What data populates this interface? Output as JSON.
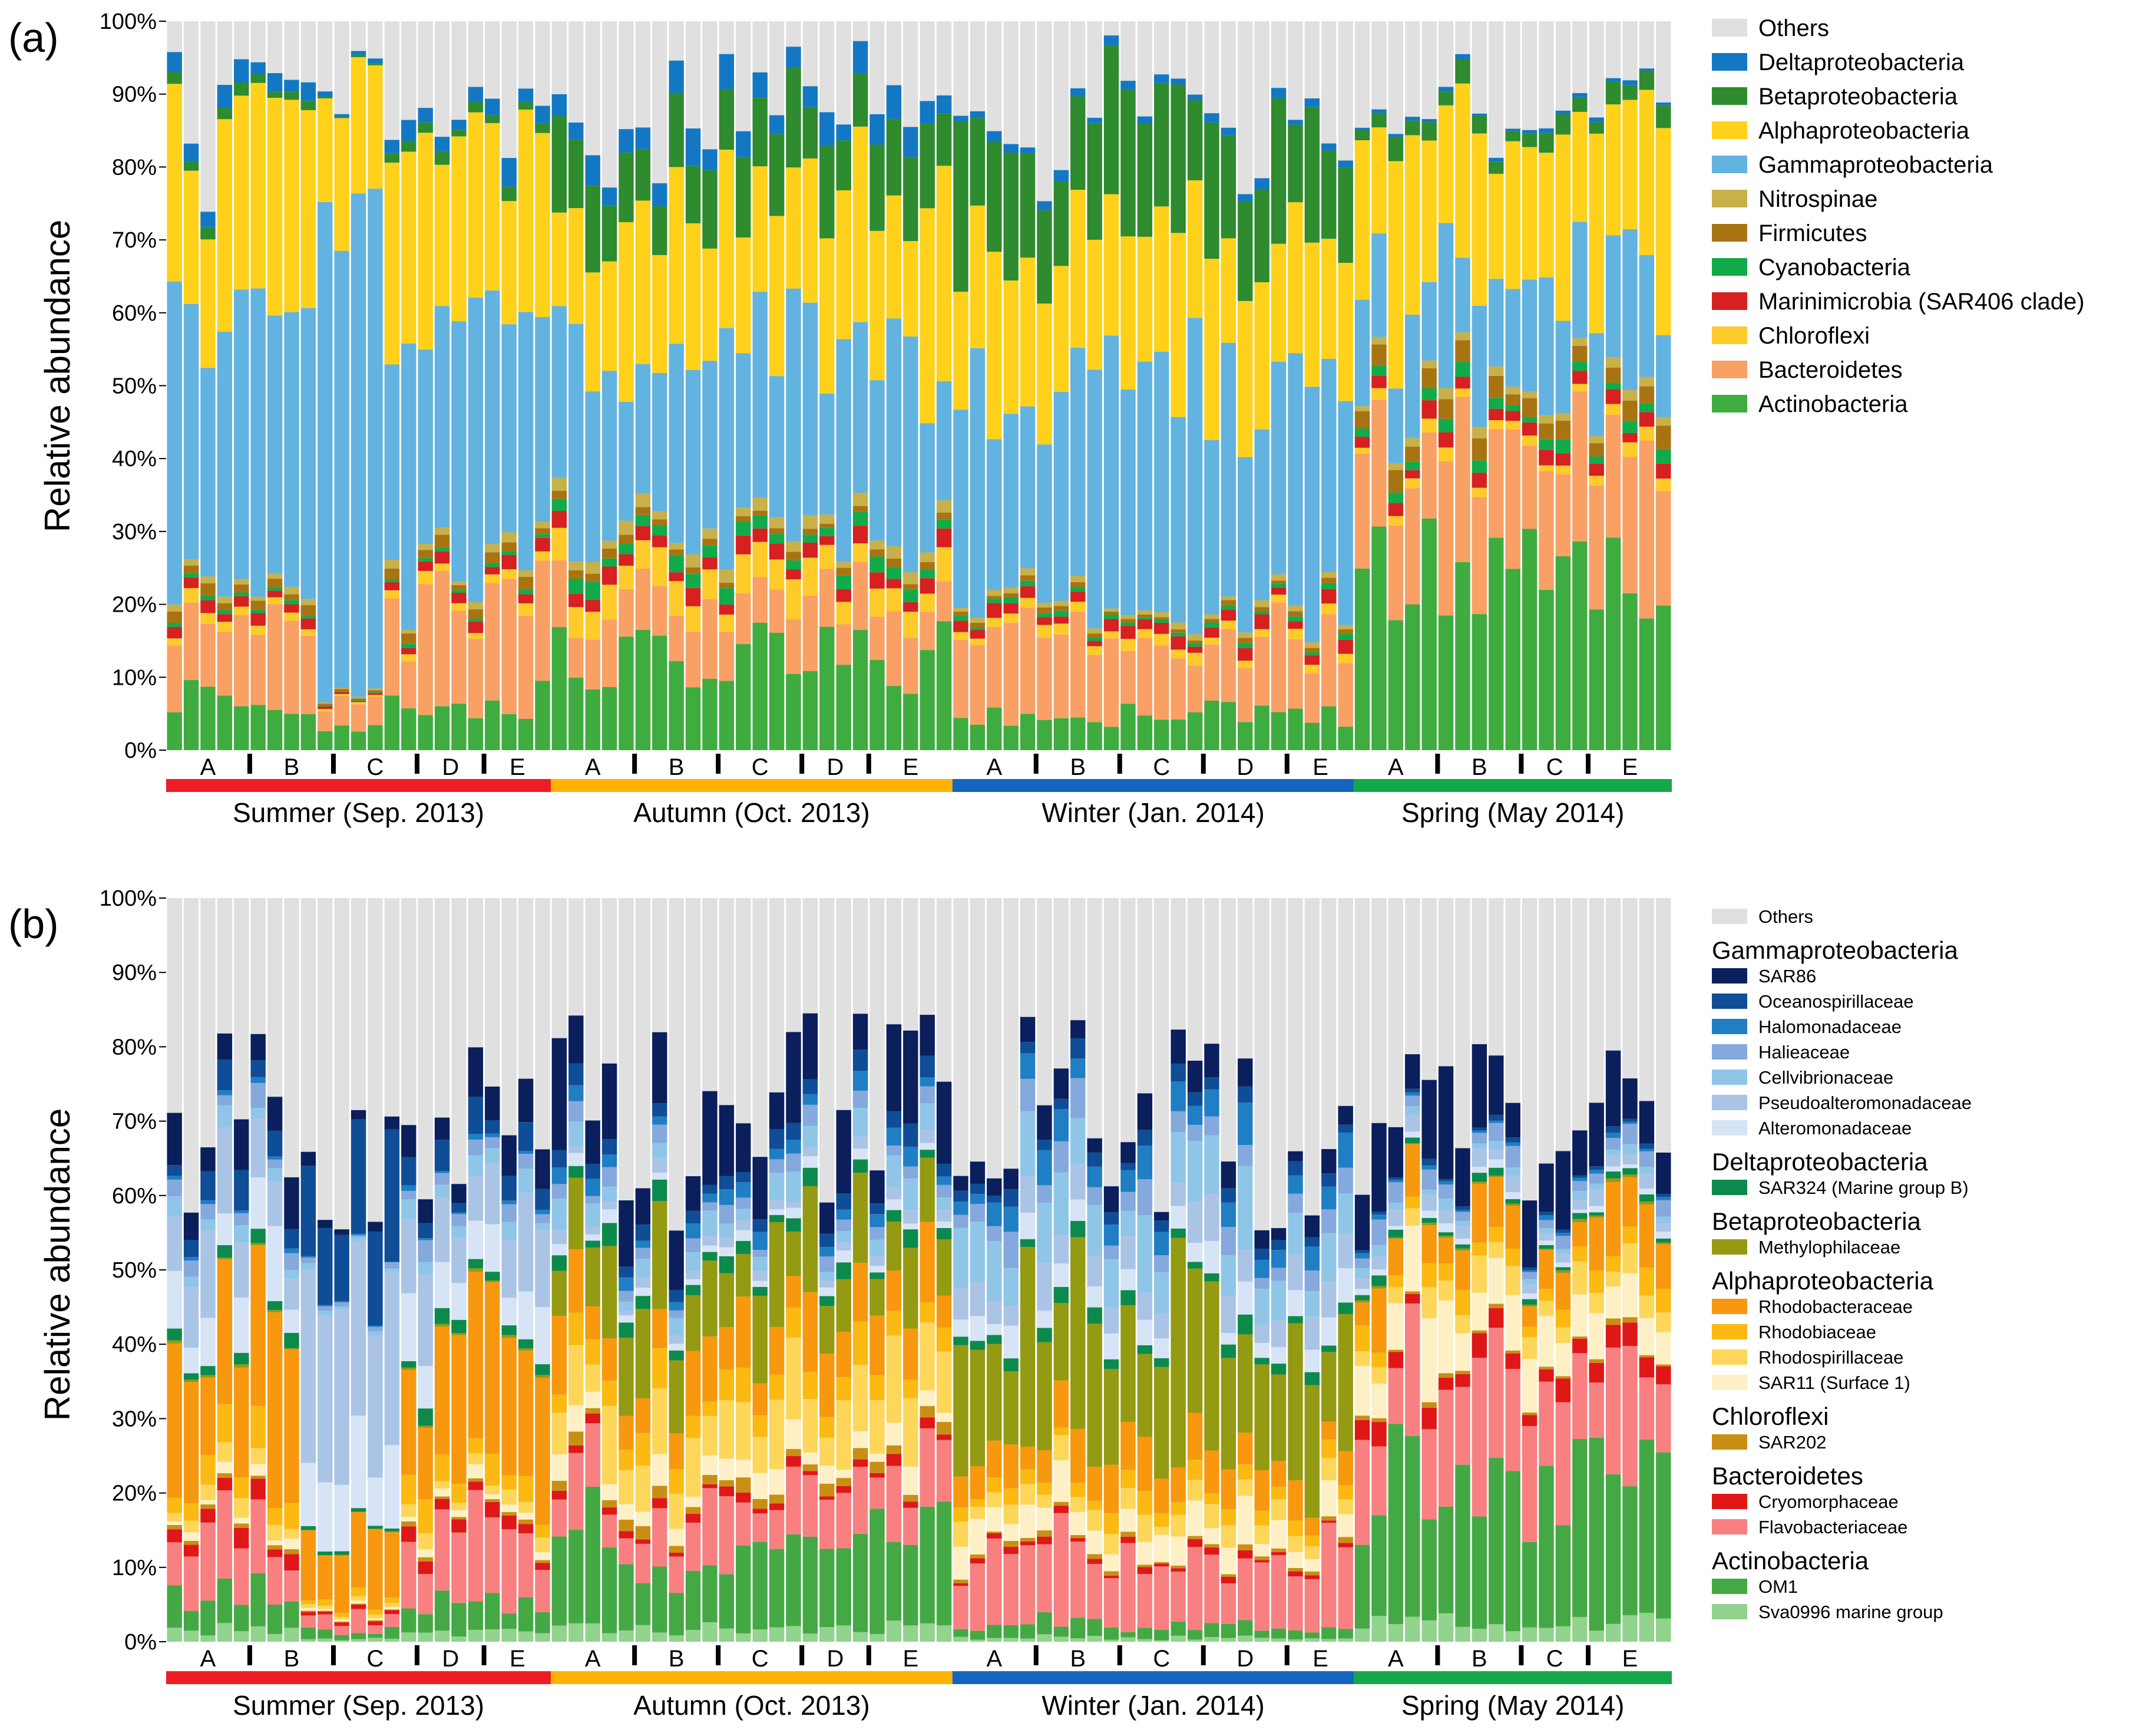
{
  "chart_data": [
    {
      "panel_label": "(a)",
      "type": "stacked-bar",
      "ylabel": "Relative abundance",
      "yticks": [
        "0%",
        "10%",
        "20%",
        "30%",
        "40%",
        "50%",
        "60%",
        "70%",
        "80%",
        "90%",
        "100%"
      ],
      "ylim": [
        0,
        100
      ],
      "n_samples": 90,
      "seasons": [
        {
          "label": "Summer (Sep. 2013)",
          "color": "#ee1c25",
          "start": 0,
          "count": 23,
          "sites": [
            {
              "label": "A",
              "count": 5
            },
            {
              "label": "B",
              "count": 5
            },
            {
              "label": "C",
              "count": 5
            },
            {
              "label": "D",
              "count": 4
            },
            {
              "label": "E",
              "count": 4
            }
          ]
        },
        {
          "label": "Autumn (Oct. 2013)",
          "color": "#ffb300",
          "start": 23,
          "count": 24,
          "sites": [
            {
              "label": "A",
              "count": 5
            },
            {
              "label": "B",
              "count": 5
            },
            {
              "label": "C",
              "count": 5
            },
            {
              "label": "D",
              "count": 4
            },
            {
              "label": "E",
              "count": 5
            }
          ]
        },
        {
          "label": "Winter (Jan. 2014)",
          "color": "#1565c0",
          "start": 47,
          "count": 24,
          "sites": [
            {
              "label": "A",
              "count": 5
            },
            {
              "label": "B",
              "count": 5
            },
            {
              "label": "C",
              "count": 5
            },
            {
              "label": "D",
              "count": 5
            },
            {
              "label": "E",
              "count": 4
            }
          ]
        },
        {
          "label": "Spring (May 2014)",
          "color": "#14a84b",
          "start": 71,
          "count": 19,
          "sites": [
            {
              "label": "A",
              "count": 5
            },
            {
              "label": "B",
              "count": 5
            },
            {
              "label": "C",
              "count": 4
            },
            {
              "label": "E",
              "count": 5
            }
          ]
        }
      ],
      "legend": [
        {
          "name": "Others",
          "color": "#e0e0e0"
        },
        {
          "name": "Deltaproteobacteria",
          "color": "#1378c4"
        },
        {
          "name": "Betaproteobacteria",
          "color": "#2e8b2e"
        },
        {
          "name": "Alphaproteobacteria",
          "color": "#ffd11a"
        },
        {
          "name": "Gammaproteobacteria",
          "color": "#62b3e0"
        },
        {
          "name": "Nitrospinae",
          "color": "#c8b04a"
        },
        {
          "name": "Firmicutes",
          "color": "#a87412"
        },
        {
          "name": "Cyanobacteria",
          "color": "#11ab4a"
        },
        {
          "name": "Marinimicrobia (SAR406 clade)",
          "color": "#d72020"
        },
        {
          "name": "Chloroflexi",
          "color": "#fecb2a"
        },
        {
          "name": "Bacteroidetes",
          "color": "#f9a065"
        },
        {
          "name": "Actinobacteria",
          "color": "#3fac3f"
        }
      ],
      "series_stack_order": [
        "Actinobacteria",
        "Bacteroidetes",
        "Chloroflexi",
        "Marinimicrobia (SAR406 clade)",
        "Cyanobacteria",
        "Firmicutes",
        "Nitrospinae",
        "Gammaproteobacteria",
        "Alphaproteobacteria",
        "Betaproteobacteria",
        "Deltaproteobacteria"
      ],
      "season_profiles": [
        {
          "Actinobacteria": 7,
          "Bacteroidetes": 15,
          "Chloroflexi": 1.5,
          "Marinimicrobia (SAR406 clade)": 1.5,
          "Cyanobacteria": 0.5,
          "Firmicutes": 1.5,
          "Nitrospinae": 1,
          "Gammaproteobacteria": 36,
          "Alphaproteobacteria": 28,
          "Betaproteobacteria": 1.5,
          "Deltaproteobacteria": 2.5
        },
        {
          "Actinobacteria": 13,
          "Bacteroidetes": 8,
          "Chloroflexi": 4,
          "Marinimicrobia (SAR406 clade)": 2,
          "Cyanobacteria": 1.5,
          "Firmicutes": 1,
          "Nitrospinae": 1.5,
          "Gammaproteobacteria": 26,
          "Alphaproteobacteria": 23,
          "Betaproteobacteria": 9,
          "Deltaproteobacteria": 4
        }
      ]
    },
    {
      "panel_label": "(b)",
      "type": "stacked-bar",
      "ylabel": "Relative abundance",
      "yticks": [
        "0%",
        "10%",
        "20%",
        "30%",
        "40%",
        "50%",
        "60%",
        "70%",
        "80%",
        "90%",
        "100%"
      ],
      "ylim": [
        0,
        100
      ],
      "n_samples": 90,
      "seasons": [
        {
          "label": "Summer (Sep. 2013)",
          "color": "#ee1c25"
        },
        {
          "label": "Autumn (Oct. 2013)",
          "color": "#ffb300"
        },
        {
          "label": "Winter (Jan. 2014)",
          "color": "#1565c0"
        },
        {
          "label": "Spring (May 2014)",
          "color": "#14a84b"
        }
      ],
      "legend_groups": [
        {
          "group": "",
          "items": [
            {
              "name": "Others",
              "color": "#e0e0e0"
            }
          ]
        },
        {
          "group": "Gammaproteobacteria",
          "items": [
            {
              "name": "SAR86",
              "color": "#0a1f5c"
            },
            {
              "name": "Oceanospirillaceae",
              "color": "#0f4d96"
            },
            {
              "name": "Halomonadaceae",
              "color": "#1f7ec4"
            },
            {
              "name": "Halieaceae",
              "color": "#85a9dc"
            },
            {
              "name": "Cellvibrionaceae",
              "color": "#8fc6e8"
            },
            {
              "name": "Pseudoalteromonadaceae",
              "color": "#aac4e6"
            },
            {
              "name": "Alteromonadaceae",
              "color": "#d6e4f5"
            }
          ]
        },
        {
          "group": "Deltaproteobacteria",
          "items": [
            {
              "name": "SAR324 (Marine group B)",
              "color": "#0c8a4c"
            }
          ]
        },
        {
          "group": "Betaproteobacteria",
          "items": [
            {
              "name": "Methylophilaceae",
              "color": "#949a12"
            }
          ]
        },
        {
          "group": "Alphaproteobacteria",
          "items": [
            {
              "name": "Rhodobacteraceae",
              "color": "#f7980f"
            },
            {
              "name": "Rhodobiaceae",
              "color": "#fbb912"
            },
            {
              "name": "Rhodospirillaceae",
              "color": "#fdd65a"
            },
            {
              "name": "SAR11 (Surface 1)",
              "color": "#fef0c4"
            }
          ]
        },
        {
          "group": "Chloroflexi",
          "items": [
            {
              "name": "SAR202",
              "color": "#c98e14"
            }
          ]
        },
        {
          "group": "Bacteroidetes",
          "items": [
            {
              "name": "Cryomorphaceae",
              "color": "#e01717"
            },
            {
              "name": "Flavobacteriaceae",
              "color": "#f88080"
            }
          ]
        },
        {
          "group": "Actinobacteria",
          "items": [
            {
              "name": "OM1",
              "color": "#44a944"
            },
            {
              "name": "Sva0996 marine group",
              "color": "#92d38e"
            }
          ]
        }
      ],
      "series_stack_order": [
        "Sva0996 marine group",
        "OM1",
        "Flavobacteriaceae",
        "Cryomorphaceae",
        "SAR202",
        "SAR11 (Surface 1)",
        "Rhodospirillaceae",
        "Rhodobiaceae",
        "Rhodobacteraceae",
        "Methylophilaceae",
        "SAR324 (Marine group B)",
        "Alteromonadaceae",
        "Pseudoalteromonadaceae",
        "Cellvibrionaceae",
        "Halieaceae",
        "Halomonadaceae",
        "Oceanospirillaceae",
        "SAR86"
      ]
    }
  ]
}
